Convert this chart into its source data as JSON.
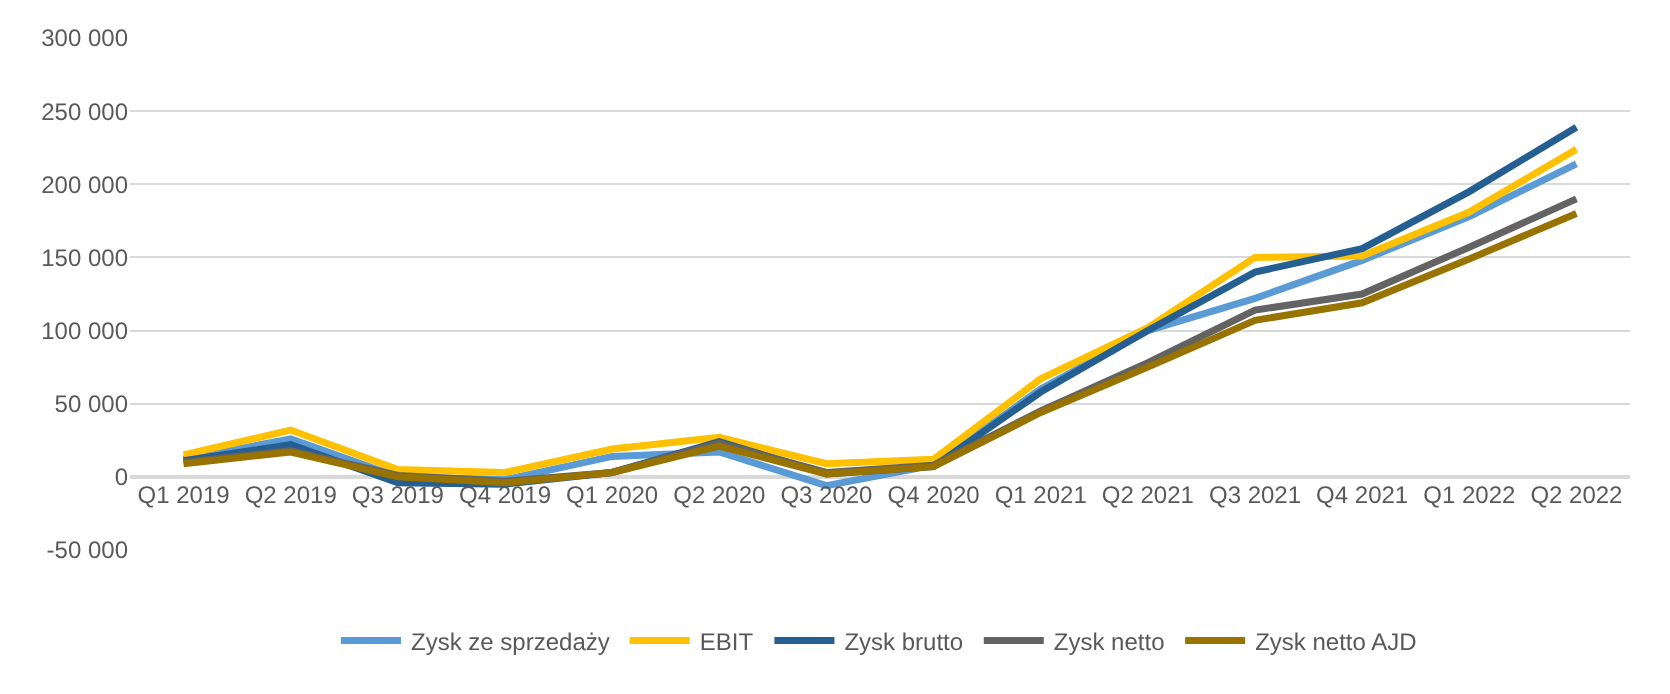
{
  "chart_data": {
    "type": "line",
    "categories": [
      "Q1 2019",
      "Q2 2019",
      "Q3 2019",
      "Q4 2019",
      "Q1 2020",
      "Q2 2020",
      "Q3 2020",
      "Q4 2020",
      "Q1 2021",
      "Q2 2021",
      "Q3 2021",
      "Q4 2021",
      "Q1 2022",
      "Q2 2022"
    ],
    "series": [
      {
        "name": "Zysk ze sprzedaży",
        "color": "#5b9bd5",
        "values": [
          12000,
          26000,
          0,
          -2000,
          14000,
          17000,
          -6000,
          8000,
          60000,
          100000,
          122000,
          148000,
          178000,
          214000
        ]
      },
      {
        "name": "EBIT",
        "color": "#ffc000",
        "values": [
          15000,
          32000,
          5000,
          3000,
          19000,
          27000,
          9000,
          12000,
          67000,
          102000,
          150000,
          151000,
          181000,
          224000
        ]
      },
      {
        "name": "Zysk brutto",
        "color": "#255e91",
        "values": [
          11000,
          22000,
          -4000,
          -5000,
          3000,
          24000,
          2000,
          7000,
          58000,
          100000,
          140000,
          156000,
          195000,
          239000
        ]
      },
      {
        "name": "Zysk netto",
        "color": "#636363",
        "values": [
          10000,
          18000,
          1000,
          -3000,
          3000,
          23000,
          3000,
          8000,
          45000,
          78000,
          114000,
          125000,
          157000,
          190000
        ]
      },
      {
        "name": "Zysk netto AJD",
        "color": "#997300",
        "values": [
          9000,
          17000,
          0,
          -4000,
          3000,
          21000,
          2000,
          7000,
          44000,
          75000,
          107000,
          119000,
          149000,
          180000
        ]
      }
    ],
    "ylim": [
      -50000,
      300000
    ],
    "yticks": [
      {
        "value": -50000,
        "label": "-50 000"
      },
      0,
      {
        "value": 50000,
        "label": "50 000"
      },
      {
        "value": 100000,
        "label": "100 000"
      },
      {
        "value": 150000,
        "label": "150 000"
      },
      {
        "value": 200000,
        "label": "200 000"
      },
      {
        "value": 250000,
        "label": "250 000"
      },
      {
        "value": 300000,
        "label": "300 000"
      }
    ],
    "grid": "y",
    "legend": "bottom",
    "marker": "none",
    "line_style": "solid"
  }
}
